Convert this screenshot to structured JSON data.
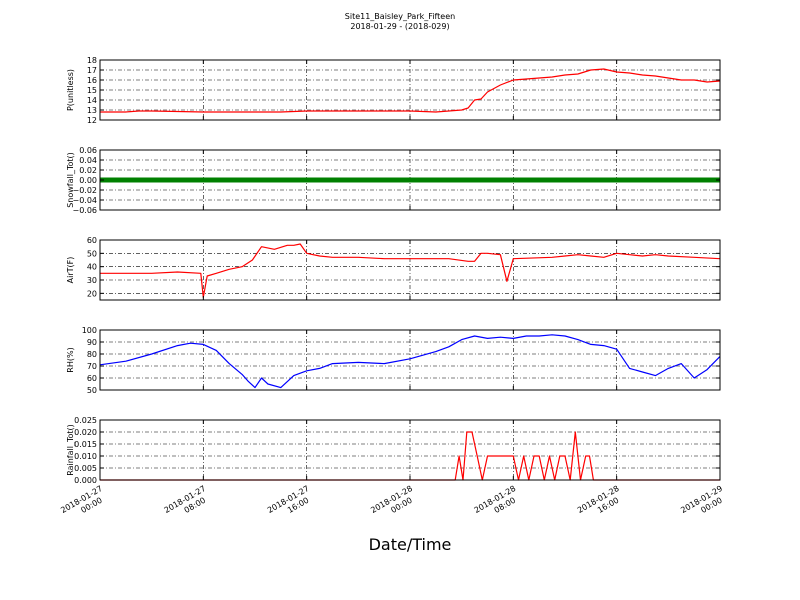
{
  "chart_data": {
    "type": "line",
    "title": "Site11_Baisley_Park_Fifteen",
    "subtitle": "2018-01-29 - (2018-029)",
    "xlabel": "Date/Time",
    "x_ticks": [
      [
        "2018-01-27",
        "00:00"
      ],
      [
        "2018-01-27",
        "08:00"
      ],
      [
        "2018-01-27",
        "16:00"
      ],
      [
        "2018-01-28",
        "00:00"
      ],
      [
        "2018-01-28",
        "08:00"
      ],
      [
        "2018-01-28",
        "16:00"
      ],
      [
        "2018-01-29",
        "00:00"
      ]
    ],
    "x_unit": "hours since 2018-01-27 00:00",
    "xlim": [
      0,
      48
    ],
    "grid": true,
    "panels": [
      {
        "ylabel": "P(unitless)",
        "ylim": [
          12,
          18
        ],
        "yticks": [
          "12",
          "13",
          "14",
          "15",
          "16",
          "17",
          "18"
        ],
        "ytick_values": [
          12,
          13,
          14,
          15,
          16,
          17,
          18
        ],
        "color": "#ff0000",
        "marker": false,
        "series": {
          "x": [
            0,
            2,
            3,
            4,
            8,
            12,
            14,
            16,
            19,
            24,
            26,
            27,
            28,
            28.5,
            29,
            29.5,
            30,
            31,
            32,
            33,
            34,
            35,
            36,
            37,
            38,
            39,
            40,
            41,
            42,
            43,
            44,
            45,
            46,
            47,
            48
          ],
          "y": [
            12.8,
            12.8,
            12.9,
            12.9,
            12.8,
            12.8,
            12.8,
            12.9,
            12.9,
            12.9,
            12.8,
            12.9,
            13.0,
            13.2,
            14.0,
            14.1,
            14.8,
            15.5,
            16.0,
            16.1,
            16.2,
            16.3,
            16.5,
            16.6,
            17.0,
            17.1,
            16.8,
            16.7,
            16.5,
            16.4,
            16.2,
            16.0,
            16.0,
            15.8,
            15.9
          ]
        }
      },
      {
        "ylabel": "Snowfall_Tot()",
        "ylim": [
          -0.06,
          0.06
        ],
        "yticks": [
          "−0.06",
          "−0.04",
          "−0.02",
          "0.00",
          "0.02",
          "0.04",
          "0.06"
        ],
        "ytick_values": [
          -0.06,
          -0.04,
          -0.02,
          0.0,
          0.02,
          0.04,
          0.06
        ],
        "color": "#008000",
        "marker": true,
        "series": {
          "x": [
            0,
            48
          ],
          "y": [
            0,
            0
          ]
        }
      },
      {
        "ylabel": "AirT(F)",
        "ylim": [
          15,
          60
        ],
        "yticks": [
          "20",
          "30",
          "40",
          "50",
          "60"
        ],
        "ytick_values": [
          20,
          30,
          40,
          50,
          60
        ],
        "color": "#ff0000",
        "marker": false,
        "series": {
          "x": [
            0,
            4,
            6,
            7.8,
            8,
            8.3,
            9,
            10,
            11,
            11.8,
            12.5,
            13.5,
            14.5,
            15,
            15.5,
            16,
            17,
            18,
            20,
            22,
            24,
            27,
            28.5,
            29,
            29.5,
            30,
            31,
            31.5,
            32,
            35,
            36,
            37,
            38,
            39,
            40,
            41,
            42,
            43,
            44,
            46,
            48
          ],
          "y": [
            35,
            35,
            36,
            35,
            17,
            33,
            35,
            38,
            40,
            45,
            55,
            53,
            56,
            56,
            57,
            50,
            48,
            47,
            47,
            46,
            46,
            46,
            44,
            44,
            50,
            50,
            49,
            29,
            46,
            47,
            48,
            49,
            48,
            47,
            50,
            49,
            48,
            49,
            48,
            47,
            46
          ]
        }
      },
      {
        "ylabel": "RH(%)",
        "ylim": [
          50,
          100
        ],
        "yticks": [
          "50",
          "60",
          "70",
          "80",
          "90",
          "100"
        ],
        "ytick_values": [
          50,
          60,
          70,
          80,
          90,
          100
        ],
        "color": "#0000ff",
        "marker": false,
        "series": {
          "x": [
            0,
            2,
            4,
            6,
            7,
            8,
            9,
            10,
            11,
            11.5,
            12,
            12.5,
            13,
            14,
            15,
            16,
            17,
            18,
            20,
            22,
            24,
            25,
            26,
            27,
            28,
            29,
            30,
            31,
            32,
            33,
            34,
            35,
            36,
            37,
            38,
            39,
            40,
            41,
            42,
            43,
            44,
            45,
            46,
            47,
            48
          ],
          "y": [
            71,
            74,
            80,
            87,
            89,
            88,
            83,
            72,
            63,
            57,
            52,
            60,
            55,
            52,
            62,
            66,
            68,
            72,
            73,
            72,
            76,
            79,
            82,
            86,
            92,
            95,
            93,
            94,
            93,
            95,
            95,
            96,
            95,
            92,
            88,
            87,
            84,
            68,
            65,
            62,
            68,
            72,
            60,
            67,
            78
          ]
        }
      },
      {
        "ylabel": "Rainfall_Tot()",
        "ylim": [
          0,
          0.025
        ],
        "yticks": [
          "0.000",
          "0.005",
          "0.010",
          "0.015",
          "0.020",
          "0.025"
        ],
        "ytick_values": [
          0,
          0.005,
          0.01,
          0.015,
          0.02,
          0.025
        ],
        "color": "#ff0000",
        "marker": false,
        "series": {
          "x": [
            0,
            27.5,
            27.8,
            28.1,
            28.4,
            28.8,
            29.2,
            29.6,
            30,
            30.4,
            30.8,
            31.2,
            31.6,
            32,
            32.4,
            32.8,
            33.2,
            33.6,
            34,
            34.4,
            34.8,
            35.2,
            35.6,
            36,
            36.4,
            36.8,
            37.2,
            37.6,
            37.9,
            38.2,
            38.6,
            39,
            39.4,
            48
          ],
          "y": [
            0,
            0,
            0.01,
            0,
            0.02,
            0.02,
            0.01,
            0,
            0.01,
            0.01,
            0.01,
            0.01,
            0.01,
            0.01,
            0,
            0.01,
            0,
            0.01,
            0.01,
            0,
            0.01,
            0,
            0.01,
            0.01,
            0,
            0.02,
            0,
            0.01,
            0.01,
            0,
            0,
            0,
            0,
            0
          ]
        }
      }
    ]
  }
}
